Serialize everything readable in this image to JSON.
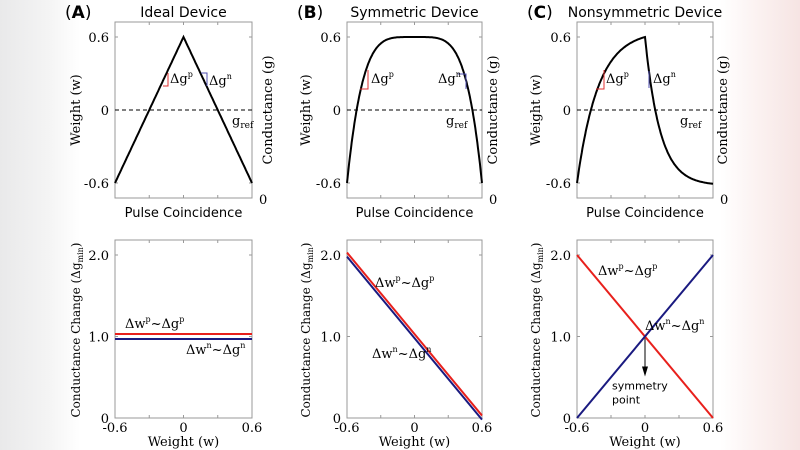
{
  "figure": {
    "panels": [
      {
        "letter": "A",
        "title": "Ideal Device"
      },
      {
        "letter": "B",
        "title": "Symmetric Device"
      },
      {
        "letter": "C",
        "title": "Nonsymmetric Device"
      }
    ]
  },
  "chart_data": [
    {
      "type": "line",
      "panel": "A",
      "title": "Ideal Device",
      "xlabel": "Pulse Coincidence",
      "ylabel": "Weight (w)",
      "ylabel_right": "Conductance (g)",
      "yticks": [
        "0.6",
        "0",
        "-0.6"
      ],
      "ytick_values": [
        0.6,
        0,
        -0.6
      ],
      "yright_ticks": [
        "0"
      ],
      "ylim": [
        -0.72,
        0.72
      ],
      "xlim": [
        0,
        1
      ],
      "curve": "triangle",
      "series": [
        {
          "x": [
            0,
            0.5,
            1
          ],
          "y": [
            -0.6,
            0.6,
            -0.6
          ],
          "color": "#000000"
        }
      ],
      "reference_line": {
        "y": 0,
        "label": "g",
        "label_sub": "ref",
        "style": "dashed"
      },
      "annotations": [
        {
          "text": "Δg",
          "sup": "p",
          "color": "#e03030"
        },
        {
          "text": "Δg",
          "sup": "n",
          "color": "#5050b0"
        }
      ]
    },
    {
      "type": "line",
      "panel": "B",
      "title": "Symmetric Device",
      "xlabel": "Pulse Coincidence",
      "ylabel": "Weight (w)",
      "ylabel_right": "Conductance (g)",
      "yticks": [
        "0.6",
        "0",
        "-0.6"
      ],
      "ytick_values": [
        0.6,
        0,
        -0.6
      ],
      "yright_ticks": [
        "0"
      ],
      "ylim": [
        -0.72,
        0.72
      ],
      "xlim": [
        0,
        1
      ],
      "curve": "symmetric-saturating",
      "series": [
        {
          "x": [
            0,
            0.05,
            0.1,
            0.2,
            0.3,
            0.4,
            0.5,
            0.6,
            0.7,
            0.8,
            0.9,
            0.95,
            1
          ],
          "y": [
            -0.6,
            -0.12,
            0.17,
            0.44,
            0.55,
            0.59,
            0.6,
            0.59,
            0.55,
            0.44,
            0.17,
            -0.12,
            -0.6
          ],
          "color": "#000000"
        }
      ],
      "reference_line": {
        "y": 0,
        "label": "g",
        "label_sub": "ref",
        "style": "dashed"
      },
      "annotations": [
        {
          "text": "Δg",
          "sup": "p",
          "color": "#e03030"
        },
        {
          "text": "Δg",
          "sup": "n",
          "color": "#5050b0"
        }
      ]
    },
    {
      "type": "line",
      "panel": "C",
      "title": "Nonsymmetric Device",
      "xlabel": "Pulse Coincidence",
      "ylabel": "Weight (w)",
      "ylabel_right": "Conductance (g)",
      "yticks": [
        "0.6",
        "0",
        "-0.6"
      ],
      "ytick_values": [
        0.6,
        0,
        -0.6
      ],
      "yright_ticks": [
        "0"
      ],
      "ylim": [
        -0.72,
        0.72
      ],
      "xlim": [
        0,
        1
      ],
      "curve": "nonsymmetric",
      "series": [
        {
          "x": [
            0,
            0.05,
            0.1,
            0.15,
            0.2,
            0.3,
            0.4,
            0.5,
            0.52,
            0.56,
            0.6,
            0.7,
            0.8,
            0.9,
            1
          ],
          "y": [
            -0.6,
            -0.2,
            0.08,
            0.26,
            0.38,
            0.5,
            0.56,
            0.6,
            0.38,
            0.03,
            -0.2,
            -0.44,
            -0.54,
            -0.58,
            -0.6
          ],
          "color": "#000000"
        }
      ],
      "reference_line": {
        "y": 0,
        "label": "g",
        "label_sub": "ref",
        "style": "dashed"
      },
      "annotations": [
        {
          "text": "Δg",
          "sup": "p",
          "color": "#e03030"
        },
        {
          "text": "Δg",
          "sup": "n",
          "color": "#5050b0"
        }
      ]
    },
    {
      "type": "line",
      "panel": "A",
      "xlabel": "Weight (w)",
      "ylabel": "Conductance Change (Δg",
      "ylabel_sub": "min",
      "ylabel_end": ")",
      "xticks": [
        "-0.6",
        "0",
        "0.6"
      ],
      "xtick_values": [
        -0.6,
        0,
        0.6
      ],
      "yticks": [
        "2.0",
        "1.0",
        "0"
      ],
      "ytick_values": [
        2.0,
        1.0,
        0
      ],
      "xlim": [
        -0.6,
        0.6
      ],
      "ylim": [
        0,
        2.2
      ],
      "series": [
        {
          "label": [
            "Δw",
            "p",
            "~Δg",
            "p"
          ],
          "x": [
            -0.6,
            0.6
          ],
          "y": [
            1.03,
            1.03
          ],
          "color": "#e8201c"
        },
        {
          "label": [
            "Δw",
            "n",
            "~Δg",
            "n"
          ],
          "x": [
            -0.6,
            0.6
          ],
          "y": [
            0.97,
            0.97
          ],
          "color": "#1a1a80"
        }
      ]
    },
    {
      "type": "line",
      "panel": "B",
      "xlabel": "Weight (w)",
      "ylabel": "Conductance Change (Δg",
      "ylabel_sub": "min",
      "ylabel_end": ")",
      "xticks": [
        "-0.6",
        "0",
        "0.6"
      ],
      "xtick_values": [
        -0.6,
        0,
        0.6
      ],
      "yticks": [
        "2.0",
        "1.0",
        "0"
      ],
      "ytick_values": [
        2.0,
        1.0,
        0
      ],
      "xlim": [
        -0.6,
        0.6
      ],
      "ylim": [
        0,
        2.2
      ],
      "series": [
        {
          "label": [
            "Δw",
            "p",
            "~Δg",
            "p"
          ],
          "x": [
            -0.6,
            0.6
          ],
          "y": [
            2.03,
            0.03
          ],
          "color": "#e8201c"
        },
        {
          "label": [
            "Δw",
            "n",
            "~Δg",
            "n"
          ],
          "x": [
            -0.6,
            0.6
          ],
          "y": [
            1.98,
            -0.02
          ],
          "color": "#1a1a80"
        }
      ]
    },
    {
      "type": "line",
      "panel": "C",
      "xlabel": "Weight (w)",
      "ylabel": "Conductance Change (Δg",
      "ylabel_sub": "min",
      "ylabel_end": ")",
      "xticks": [
        "-0.6",
        "0",
        "0.6"
      ],
      "xtick_values": [
        -0.6,
        0,
        0.6
      ],
      "yticks": [
        "2.0",
        "1.0",
        "0"
      ],
      "ytick_values": [
        2.0,
        1.0,
        0
      ],
      "xlim": [
        -0.6,
        0.6
      ],
      "ylim": [
        0,
        2.2
      ],
      "series": [
        {
          "label": [
            "Δw",
            "p",
            "~Δg",
            "p"
          ],
          "x": [
            -0.6,
            0.6
          ],
          "y": [
            2.0,
            0.0
          ],
          "color": "#e8201c"
        },
        {
          "label": [
            "Δw",
            "n",
            "~Δg",
            "n"
          ],
          "x": [
            -0.6,
            0.6
          ],
          "y": [
            0.0,
            2.0
          ],
          "color": "#1a1a80"
        }
      ],
      "annotation": {
        "text_line1": "symmetry",
        "text_line2": "point",
        "x": 0,
        "y": 1.0
      }
    }
  ]
}
